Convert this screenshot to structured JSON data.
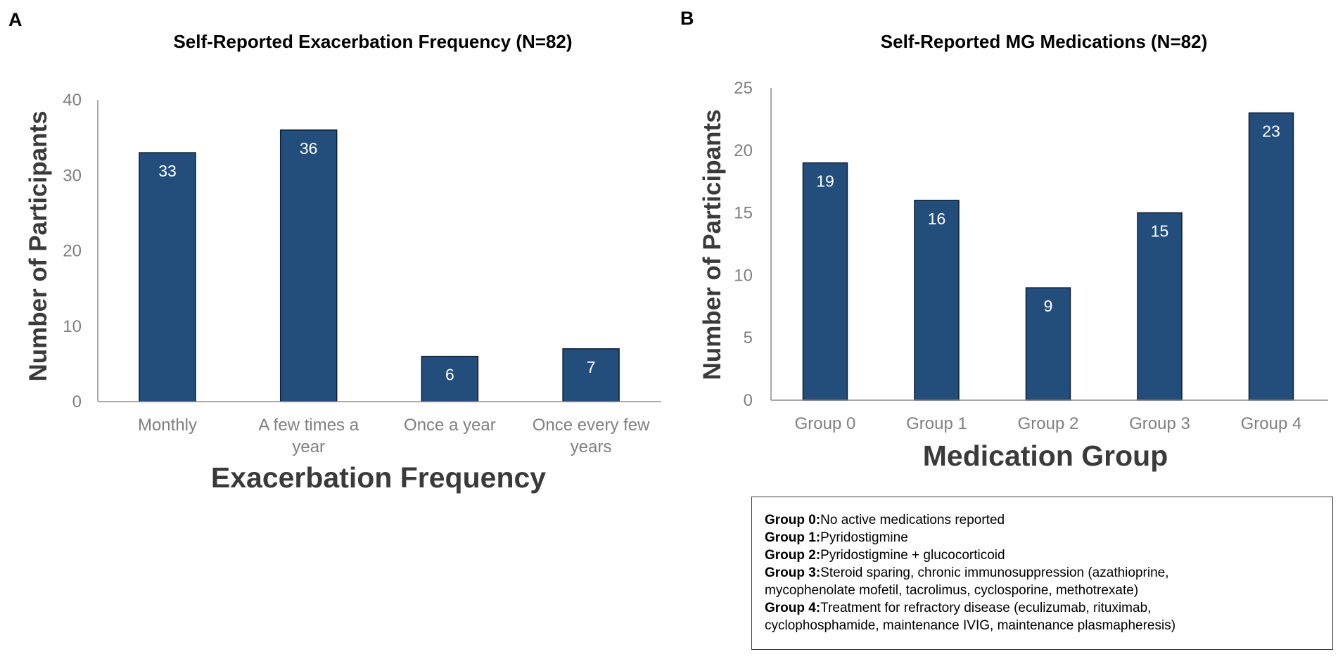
{
  "chart_data": [
    {
      "panel": "A",
      "type": "bar",
      "title": "Self-Reported Exacerbation Frequency (N=82)",
      "xlabel": "Exacerbation Frequency",
      "ylabel": "Number of Participants",
      "categories": [
        [
          "Monthly"
        ],
        [
          "A few times a",
          "year"
        ],
        [
          "Once a year"
        ],
        [
          "Once every few",
          "years"
        ]
      ],
      "values": [
        33,
        36,
        6,
        7
      ],
      "ylim": [
        0,
        40
      ],
      "yticks": [
        0,
        10,
        20,
        30,
        40
      ],
      "bar_color": "#234e7c"
    },
    {
      "panel": "B",
      "type": "bar",
      "title": "Self-Reported MG Medications (N=82)",
      "xlabel": "Medication Group",
      "ylabel": "Number of Participants",
      "categories": [
        [
          "Group 0"
        ],
        [
          "Group 1"
        ],
        [
          "Group 2"
        ],
        [
          "Group 3"
        ],
        [
          "Group 4"
        ]
      ],
      "values": [
        19,
        16,
        9,
        15,
        23
      ],
      "ylim": [
        0,
        25
      ],
      "yticks": [
        0,
        5,
        10,
        15,
        20,
        25
      ],
      "bar_color": "#234e7c"
    }
  ],
  "legend": {
    "lines": [
      {
        "group": "Group 0:",
        "text": "No active medications reported"
      },
      {
        "group": "Group 1:",
        "text": "Pyridostigmine"
      },
      {
        "group": "Group 2:",
        "text": "Pyridostigmine  + glucocorticoid"
      },
      {
        "group": "Group 3:",
        "text": "Steroid sparing, chronic immunosuppression (azathioprine,"
      },
      {
        "group": "",
        "text": "mycophenolate mofetil, tacrolimus, cyclosporine, methotrexate)"
      },
      {
        "group": "Group 4:",
        "text": "Treatment for refractory disease (eculizumab, rituximab,"
      },
      {
        "group": "",
        "text": "cyclophosphamide, maintenance IVIG,  maintenance plasmapheresis)"
      }
    ]
  }
}
